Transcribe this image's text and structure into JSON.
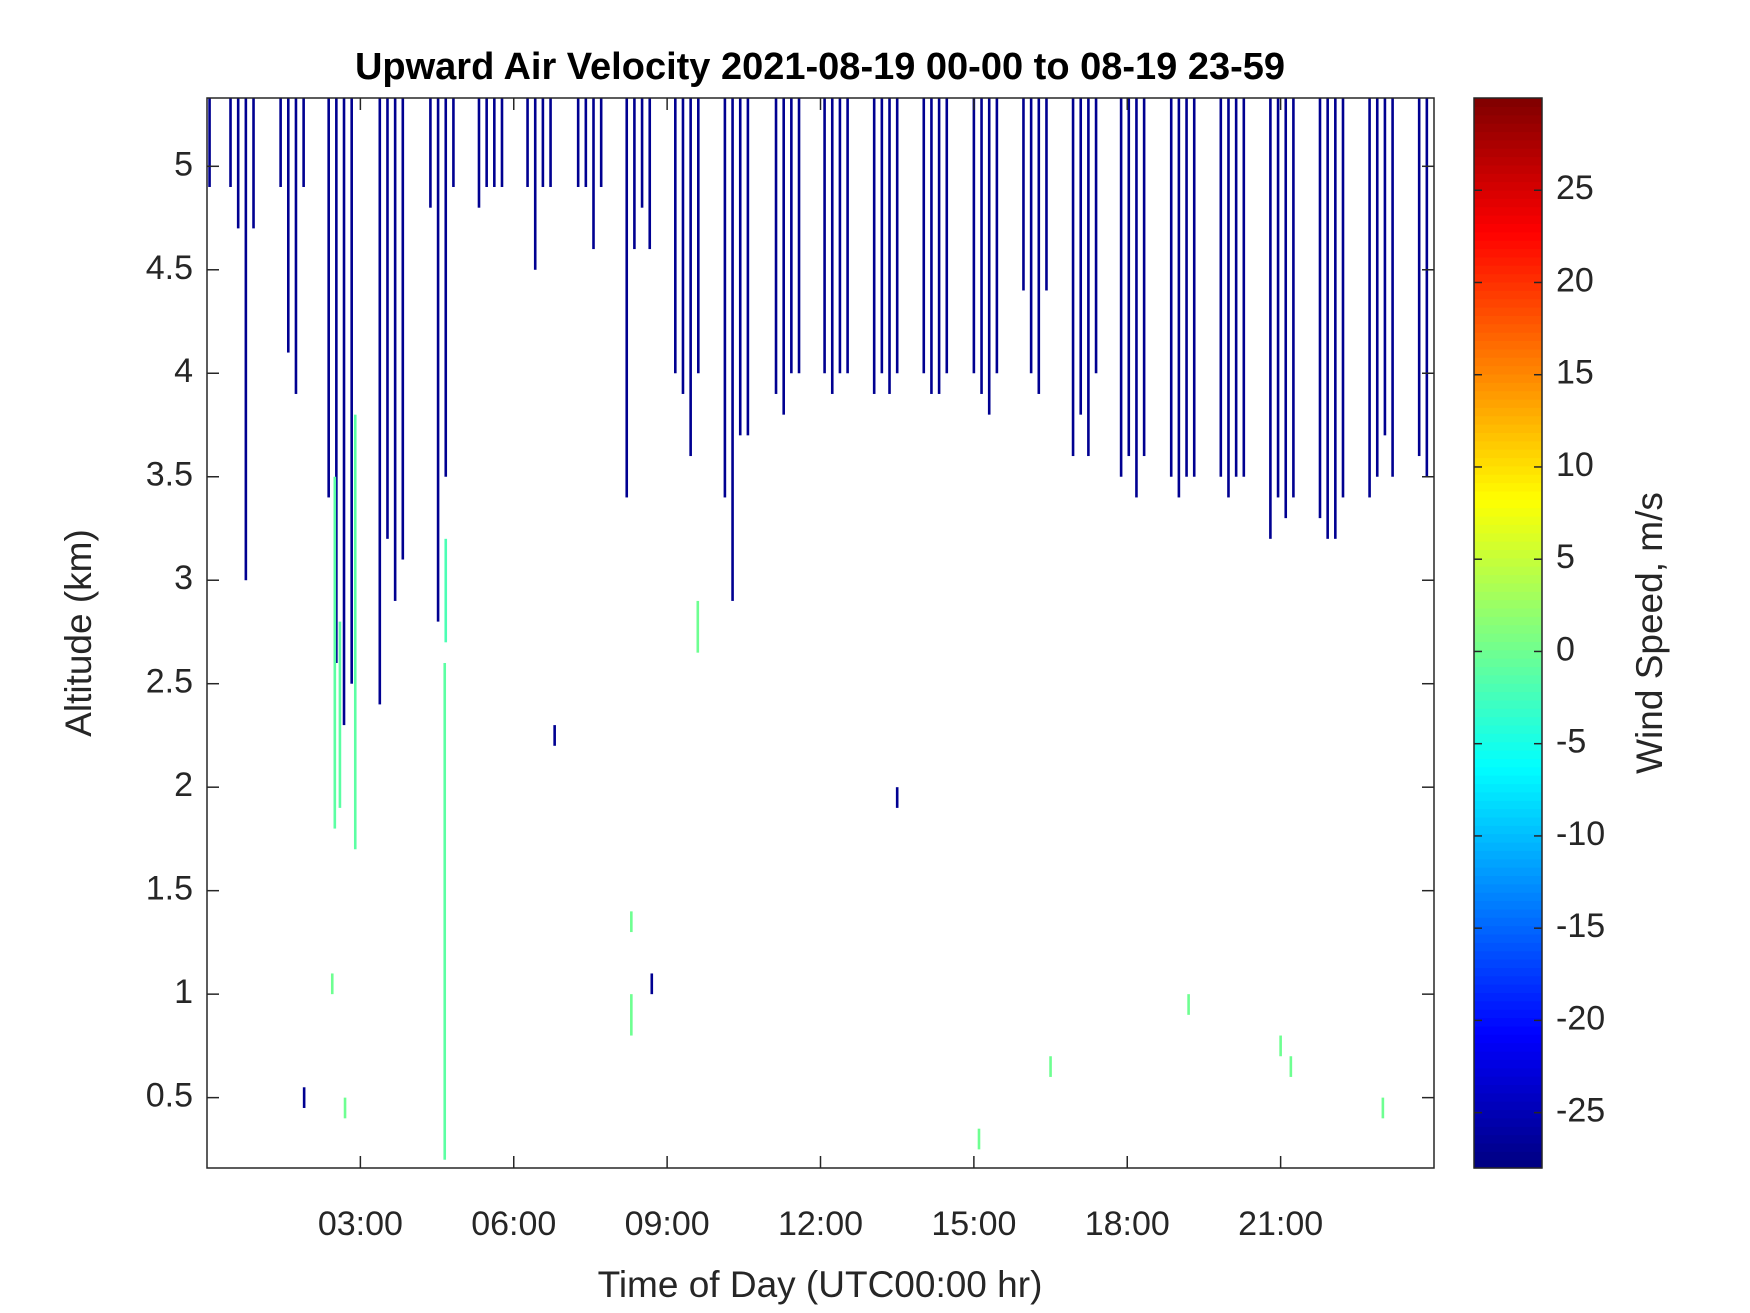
{
  "chart_data": {
    "type": "heatmap",
    "title": "Upward Air Velocity 2021-08-19 00-00 to 08-19 23-59",
    "xlabel": "Time of Day (UTC00:00 hr)",
    "ylabel": "Altitude (km)",
    "colorbar_label": "Wind Speed, m/s",
    "colormap": "jet",
    "xlim": [
      0,
      24
    ],
    "ylim": [
      0.16,
      5.33
    ],
    "clim": [
      -28,
      30
    ],
    "xticks": [
      {
        "value": 3,
        "label": "03:00"
      },
      {
        "value": 6,
        "label": "06:00"
      },
      {
        "value": 9,
        "label": "09:00"
      },
      {
        "value": 12,
        "label": "12:00"
      },
      {
        "value": 15,
        "label": "15:00"
      },
      {
        "value": 18,
        "label": "18:00"
      },
      {
        "value": 21,
        "label": "21:00"
      }
    ],
    "yticks": [
      0.5,
      1,
      1.5,
      2,
      2.5,
      3,
      3.5,
      4,
      4.5,
      5
    ],
    "cticks": [
      -25,
      -20,
      -15,
      -10,
      -5,
      0,
      5,
      10,
      15,
      20,
      25
    ],
    "cells": [
      [
        0.05,
        4.9,
        5.33,
        -27
      ],
      [
        0.46,
        4.9,
        5.33,
        -27
      ],
      [
        0.61,
        4.7,
        5.33,
        -27
      ],
      [
        0.76,
        3.0,
        5.33,
        -27
      ],
      [
        0.91,
        4.7,
        5.33,
        -27
      ],
      [
        1.44,
        4.9,
        5.33,
        -27
      ],
      [
        1.59,
        4.1,
        5.33,
        -27
      ],
      [
        1.74,
        3.9,
        5.33,
        -27
      ],
      [
        1.89,
        4.9,
        5.33,
        -27
      ],
      [
        2.38,
        3.4,
        5.33,
        -27
      ],
      [
        2.53,
        2.6,
        5.33,
        -27
      ],
      [
        2.68,
        2.3,
        5.33,
        -27
      ],
      [
        2.83,
        2.5,
        5.33,
        -27
      ],
      [
        3.38,
        2.4,
        5.33,
        -27
      ],
      [
        3.53,
        3.2,
        5.33,
        -27
      ],
      [
        3.68,
        2.9,
        5.33,
        -27
      ],
      [
        3.83,
        3.1,
        5.33,
        -27
      ],
      [
        4.37,
        4.8,
        5.33,
        -27
      ],
      [
        4.52,
        2.8,
        5.33,
        -27
      ],
      [
        4.67,
        3.5,
        5.33,
        -27
      ],
      [
        4.82,
        4.9,
        5.33,
        -27
      ],
      [
        5.32,
        4.8,
        5.33,
        -27
      ],
      [
        5.47,
        4.9,
        5.33,
        -27
      ],
      [
        5.62,
        4.9,
        5.33,
        -27
      ],
      [
        5.77,
        4.9,
        5.33,
        -27
      ],
      [
        6.27,
        4.9,
        5.33,
        -27
      ],
      [
        6.42,
        4.5,
        5.33,
        -27
      ],
      [
        6.57,
        4.9,
        5.33,
        -27
      ],
      [
        6.72,
        4.9,
        5.33,
        -27
      ],
      [
        7.26,
        4.9,
        5.33,
        -27
      ],
      [
        7.41,
        4.9,
        5.33,
        -27
      ],
      [
        7.56,
        4.6,
        5.33,
        -27
      ],
      [
        7.71,
        4.9,
        5.33,
        -27
      ],
      [
        8.21,
        3.4,
        5.33,
        -27
      ],
      [
        8.36,
        4.6,
        5.33,
        -27
      ],
      [
        8.51,
        4.8,
        5.33,
        -27
      ],
      [
        8.66,
        4.6,
        5.33,
        -27
      ],
      [
        9.16,
        4.0,
        5.33,
        -27
      ],
      [
        9.31,
        3.9,
        5.33,
        -27
      ],
      [
        9.46,
        3.6,
        5.33,
        -27
      ],
      [
        9.61,
        4.0,
        5.33,
        -27
      ],
      [
        10.13,
        3.4,
        5.33,
        -27
      ],
      [
        10.28,
        2.9,
        5.33,
        -27
      ],
      [
        10.43,
        3.7,
        5.33,
        -27
      ],
      [
        10.58,
        3.7,
        5.33,
        -27
      ],
      [
        11.13,
        3.9,
        5.33,
        -27
      ],
      [
        11.28,
        3.8,
        5.33,
        -27
      ],
      [
        11.43,
        4.0,
        5.33,
        -27
      ],
      [
        11.58,
        4.0,
        5.33,
        -27
      ],
      [
        12.08,
        4.0,
        5.33,
        -27
      ],
      [
        12.23,
        3.9,
        5.33,
        -27
      ],
      [
        12.38,
        4.0,
        5.33,
        -27
      ],
      [
        12.53,
        4.0,
        5.33,
        -27
      ],
      [
        13.05,
        3.9,
        5.33,
        -27
      ],
      [
        13.2,
        4.0,
        5.33,
        -27
      ],
      [
        13.35,
        3.9,
        5.33,
        -27
      ],
      [
        13.5,
        4.0,
        5.33,
        -27
      ],
      [
        14.02,
        4.0,
        5.33,
        -27
      ],
      [
        14.17,
        3.9,
        5.33,
        -27
      ],
      [
        14.32,
        3.9,
        5.33,
        -27
      ],
      [
        14.47,
        4.0,
        5.33,
        -27
      ],
      [
        15.0,
        4.0,
        5.33,
        -27
      ],
      [
        15.15,
        3.9,
        5.33,
        -27
      ],
      [
        15.3,
        3.8,
        5.33,
        -27
      ],
      [
        15.45,
        4.0,
        5.33,
        -27
      ],
      [
        15.97,
        4.4,
        5.33,
        -27
      ],
      [
        16.12,
        4.0,
        5.33,
        -27
      ],
      [
        16.27,
        3.9,
        5.33,
        -27
      ],
      [
        16.42,
        4.4,
        5.33,
        -27
      ],
      [
        16.94,
        3.6,
        5.33,
        -27
      ],
      [
        17.09,
        3.8,
        5.33,
        -27
      ],
      [
        17.24,
        3.6,
        5.33,
        -27
      ],
      [
        17.39,
        4.0,
        5.33,
        -27
      ],
      [
        17.88,
        3.5,
        5.33,
        -27
      ],
      [
        18.03,
        3.6,
        5.33,
        -27
      ],
      [
        18.18,
        3.4,
        5.33,
        -27
      ],
      [
        18.33,
        3.6,
        5.33,
        -27
      ],
      [
        18.86,
        3.5,
        5.33,
        -27
      ],
      [
        19.01,
        3.4,
        5.33,
        -27
      ],
      [
        19.16,
        3.5,
        5.33,
        -27
      ],
      [
        19.31,
        3.5,
        5.33,
        -27
      ],
      [
        19.83,
        3.5,
        5.33,
        -27
      ],
      [
        19.98,
        3.4,
        5.33,
        -27
      ],
      [
        20.13,
        3.5,
        5.33,
        -27
      ],
      [
        20.28,
        3.5,
        5.33,
        -27
      ],
      [
        20.8,
        3.2,
        5.33,
        -27
      ],
      [
        20.95,
        3.4,
        5.33,
        -27
      ],
      [
        21.1,
        3.3,
        5.33,
        -27
      ],
      [
        21.25,
        3.4,
        5.33,
        -27
      ],
      [
        21.77,
        3.3,
        5.33,
        -27
      ],
      [
        21.92,
        3.2,
        5.33,
        -27
      ],
      [
        22.07,
        3.2,
        5.33,
        -27
      ],
      [
        22.22,
        3.4,
        5.33,
        -27
      ],
      [
        22.74,
        3.4,
        5.33,
        -27
      ],
      [
        22.89,
        3.5,
        5.33,
        -27
      ],
      [
        23.04,
        3.7,
        5.33,
        -27
      ],
      [
        23.19,
        3.5,
        5.33,
        -27
      ],
      [
        23.71,
        3.6,
        5.33,
        -27
      ],
      [
        23.86,
        3.5,
        5.33,
        -27
      ],
      [
        6.8,
        2.2,
        2.3,
        -27
      ],
      [
        13.5,
        1.9,
        2.0,
        -27
      ],
      [
        1.9,
        0.45,
        0.55,
        -27
      ],
      [
        8.7,
        1.0,
        1.1,
        -27
      ],
      [
        2.5,
        1.8,
        3.5,
        -1
      ],
      [
        2.9,
        1.7,
        3.8,
        -1
      ],
      [
        2.6,
        1.9,
        2.8,
        -1
      ],
      [
        4.65,
        0.2,
        2.6,
        -1
      ],
      [
        4.67,
        2.7,
        3.2,
        -2
      ],
      [
        2.45,
        1.0,
        1.1,
        0
      ],
      [
        2.7,
        0.4,
        0.5,
        0
      ],
      [
        8.3,
        0.8,
        1.0,
        0
      ],
      [
        8.3,
        1.3,
        1.4,
        0
      ],
      [
        9.6,
        2.65,
        2.9,
        0
      ],
      [
        15.1,
        0.25,
        0.35,
        0
      ],
      [
        16.5,
        0.6,
        0.7,
        0
      ],
      [
        19.2,
        0.9,
        1.0,
        0
      ],
      [
        21.0,
        0.7,
        0.8,
        0
      ],
      [
        21.2,
        0.6,
        0.7,
        0
      ],
      [
        23.0,
        0.4,
        0.5,
        0
      ]
    ]
  }
}
